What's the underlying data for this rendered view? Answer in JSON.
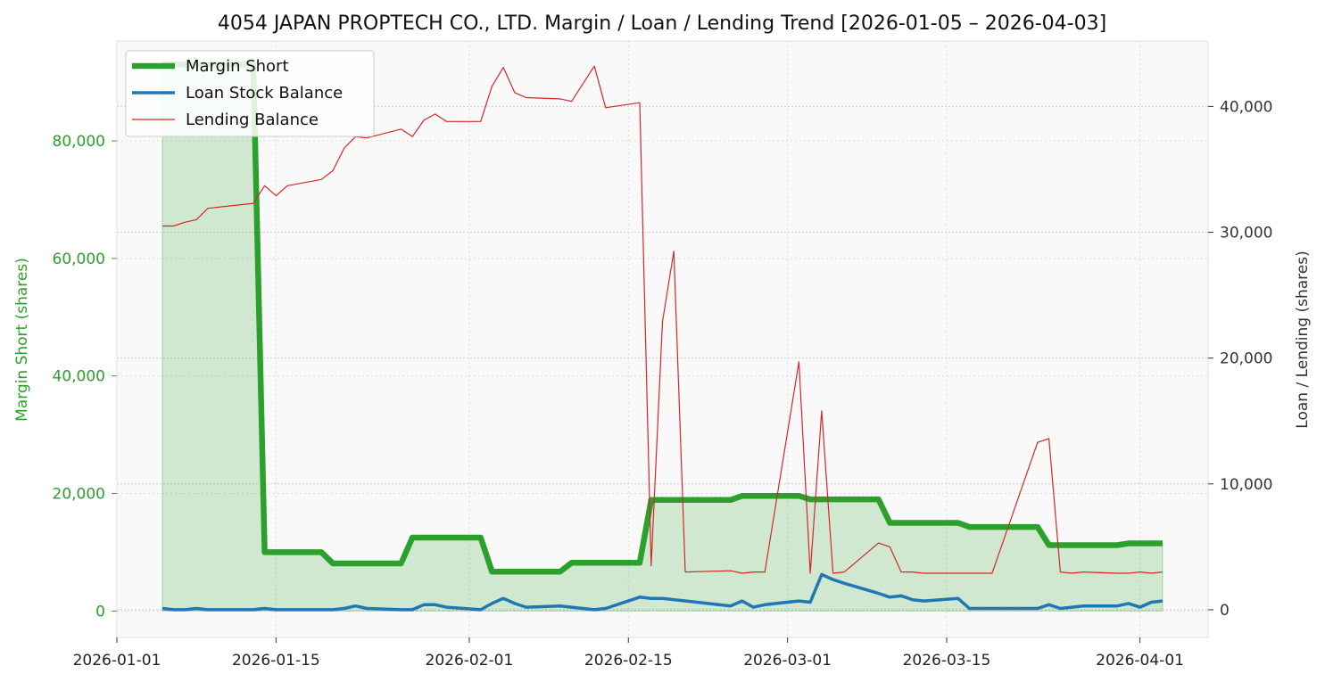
{
  "chart_data": {
    "type": "line",
    "title": "4054 JAPAN PROPTECH CO., LTD. Margin / Loan / Lending Trend [2026-01-05 – 2026-04-03]",
    "ylabel_left": "Margin Short (shares)",
    "ylabel_right": "Loan / Lending (shares)",
    "xlim": [
      "2026-01-01",
      "2026-04-07"
    ],
    "ylim_left": [
      -4500,
      97000
    ],
    "ylim_right": [
      -2200,
      45200
    ],
    "x_ticks": [
      "2026-01-01",
      "2026-01-15",
      "2026-02-01",
      "2026-02-15",
      "2026-03-01",
      "2026-03-15",
      "2026-04-01"
    ],
    "y_ticks_left": [
      0,
      20000,
      40000,
      60000,
      80000
    ],
    "y_ticks_left_labels": [
      "0",
      "20,000",
      "40,000",
      "60,000",
      "80,000"
    ],
    "y_ticks_right": [
      0,
      10000,
      20000,
      30000,
      40000
    ],
    "y_ticks_right_labels": [
      "0",
      "10,000",
      "20,000",
      "30,000",
      "40,000"
    ],
    "grid": true,
    "legend_position": "top-left",
    "series": [
      {
        "name": "Margin Short",
        "axis": "left",
        "color": "#2ca02c",
        "fill": true,
        "points": [
          [
            "2026-01-05",
            93000
          ],
          [
            "2026-01-06",
            93000
          ],
          [
            "2026-01-07",
            93000
          ],
          [
            "2026-01-08",
            93000
          ],
          [
            "2026-01-09",
            93000
          ],
          [
            "2026-01-13",
            93000
          ],
          [
            "2026-01-14",
            10000
          ],
          [
            "2026-01-15",
            10000
          ],
          [
            "2026-01-16",
            10000
          ],
          [
            "2026-01-19",
            10000
          ],
          [
            "2026-01-20",
            8100
          ],
          [
            "2026-01-21",
            8100
          ],
          [
            "2026-01-22",
            8100
          ],
          [
            "2026-01-23",
            8100
          ],
          [
            "2026-01-26",
            8100
          ],
          [
            "2026-01-27",
            12500
          ],
          [
            "2026-01-28",
            12500
          ],
          [
            "2026-01-29",
            12500
          ],
          [
            "2026-01-30",
            12500
          ],
          [
            "2026-02-02",
            12500
          ],
          [
            "2026-02-03",
            6700
          ],
          [
            "2026-02-04",
            6700
          ],
          [
            "2026-02-05",
            6700
          ],
          [
            "2026-02-06",
            6700
          ],
          [
            "2026-02-09",
            6700
          ],
          [
            "2026-02-10",
            8200
          ],
          [
            "2026-02-12",
            8200
          ],
          [
            "2026-02-13",
            8200
          ],
          [
            "2026-02-16",
            8200
          ],
          [
            "2026-02-17",
            18900
          ],
          [
            "2026-02-18",
            18900
          ],
          [
            "2026-02-19",
            18900
          ],
          [
            "2026-02-20",
            18900
          ],
          [
            "2026-02-24",
            18900
          ],
          [
            "2026-02-25",
            19600
          ],
          [
            "2026-02-26",
            19600
          ],
          [
            "2026-02-27",
            19600
          ],
          [
            "2026-03-02",
            19600
          ],
          [
            "2026-03-03",
            19000
          ],
          [
            "2026-03-04",
            19000
          ],
          [
            "2026-03-05",
            19000
          ],
          [
            "2026-03-06",
            19000
          ],
          [
            "2026-03-09",
            19000
          ],
          [
            "2026-03-10",
            15000
          ],
          [
            "2026-03-11",
            15000
          ],
          [
            "2026-03-12",
            15000
          ],
          [
            "2026-03-13",
            15000
          ],
          [
            "2026-03-16",
            15000
          ],
          [
            "2026-03-17",
            14300
          ],
          [
            "2026-03-18",
            14300
          ],
          [
            "2026-03-19",
            14300
          ],
          [
            "2026-03-23",
            14300
          ],
          [
            "2026-03-24",
            11200
          ],
          [
            "2026-03-25",
            11200
          ],
          [
            "2026-03-26",
            11200
          ],
          [
            "2026-03-27",
            11200
          ],
          [
            "2026-03-30",
            11200
          ],
          [
            "2026-03-31",
            11500
          ],
          [
            "2026-04-01",
            11500
          ],
          [
            "2026-04-02",
            11500
          ],
          [
            "2026-04-03",
            11500
          ]
        ]
      },
      {
        "name": "Loan Stock Balance",
        "axis": "right",
        "color": "#1f77b4",
        "fill": false,
        "points": [
          [
            "2026-01-05",
            100
          ],
          [
            "2026-01-06",
            0
          ],
          [
            "2026-01-07",
            0
          ],
          [
            "2026-01-08",
            100
          ],
          [
            "2026-01-09",
            0
          ],
          [
            "2026-01-13",
            0
          ],
          [
            "2026-01-14",
            100
          ],
          [
            "2026-01-15",
            0
          ],
          [
            "2026-01-16",
            0
          ],
          [
            "2026-01-19",
            0
          ],
          [
            "2026-01-20",
            0
          ],
          [
            "2026-01-21",
            100
          ],
          [
            "2026-01-22",
            300
          ],
          [
            "2026-01-23",
            100
          ],
          [
            "2026-01-26",
            0
          ],
          [
            "2026-01-27",
            0
          ],
          [
            "2026-01-28",
            400
          ],
          [
            "2026-01-29",
            400
          ],
          [
            "2026-01-30",
            200
          ],
          [
            "2026-02-02",
            0
          ],
          [
            "2026-02-03",
            500
          ],
          [
            "2026-02-04",
            900
          ],
          [
            "2026-02-05",
            500
          ],
          [
            "2026-02-06",
            200
          ],
          [
            "2026-02-09",
            300
          ],
          [
            "2026-02-10",
            200
          ],
          [
            "2026-02-12",
            0
          ],
          [
            "2026-02-13",
            100
          ],
          [
            "2026-02-16",
            1000
          ],
          [
            "2026-02-17",
            900
          ],
          [
            "2026-02-18",
            900
          ],
          [
            "2026-02-24",
            300
          ],
          [
            "2026-02-25",
            700
          ],
          [
            "2026-02-26",
            200
          ],
          [
            "2026-02-27",
            400
          ],
          [
            "2026-03-02",
            700
          ],
          [
            "2026-03-03",
            600
          ],
          [
            "2026-03-04",
            2800
          ],
          [
            "2026-03-05",
            2400
          ],
          [
            "2026-03-06",
            2100
          ],
          [
            "2026-03-09",
            1300
          ],
          [
            "2026-03-10",
            1000
          ],
          [
            "2026-03-11",
            1100
          ],
          [
            "2026-03-12",
            800
          ],
          [
            "2026-03-13",
            700
          ],
          [
            "2026-03-16",
            900
          ],
          [
            "2026-03-17",
            100
          ],
          [
            "2026-03-18",
            100
          ],
          [
            "2026-03-19",
            100
          ],
          [
            "2026-03-23",
            100
          ],
          [
            "2026-03-24",
            400
          ],
          [
            "2026-03-25",
            100
          ],
          [
            "2026-03-26",
            200
          ],
          [
            "2026-03-27",
            300
          ],
          [
            "2026-03-30",
            300
          ],
          [
            "2026-03-31",
            500
          ],
          [
            "2026-04-01",
            200
          ],
          [
            "2026-04-02",
            600
          ],
          [
            "2026-04-03",
            700
          ]
        ]
      },
      {
        "name": "Lending Balance",
        "axis": "right",
        "color": "#d62728",
        "fill": false,
        "points": [
          [
            "2026-01-05",
            30500
          ],
          [
            "2026-01-06",
            30500
          ],
          [
            "2026-01-07",
            30800
          ],
          [
            "2026-01-08",
            31000
          ],
          [
            "2026-01-09",
            31900
          ],
          [
            "2026-01-13",
            32300
          ],
          [
            "2026-01-14",
            33700
          ],
          [
            "2026-01-15",
            32900
          ],
          [
            "2026-01-16",
            33700
          ],
          [
            "2026-01-19",
            34200
          ],
          [
            "2026-01-20",
            34900
          ],
          [
            "2026-01-21",
            36700
          ],
          [
            "2026-01-22",
            37600
          ],
          [
            "2026-01-23",
            37500
          ],
          [
            "2026-01-26",
            38200
          ],
          [
            "2026-01-27",
            37600
          ],
          [
            "2026-01-28",
            38900
          ],
          [
            "2026-01-29",
            39400
          ],
          [
            "2026-01-30",
            38800
          ],
          [
            "2026-02-02",
            38800
          ],
          [
            "2026-02-03",
            41600
          ],
          [
            "2026-02-04",
            43100
          ],
          [
            "2026-02-05",
            41100
          ],
          [
            "2026-02-06",
            40700
          ],
          [
            "2026-02-09",
            40600
          ],
          [
            "2026-02-10",
            40400
          ],
          [
            "2026-02-12",
            43200
          ],
          [
            "2026-02-13",
            39900
          ],
          [
            "2026-02-16",
            40300
          ],
          [
            "2026-02-17",
            3500
          ],
          [
            "2026-02-18",
            22900
          ],
          [
            "2026-02-19",
            28500
          ],
          [
            "2026-02-20",
            3000
          ],
          [
            "2026-02-24",
            3100
          ],
          [
            "2026-02-25",
            2900
          ],
          [
            "2026-02-26",
            3000
          ],
          [
            "2026-02-27",
            3000
          ],
          [
            "2026-03-02",
            19700
          ],
          [
            "2026-03-03",
            2900
          ],
          [
            "2026-03-04",
            15800
          ],
          [
            "2026-03-05",
            2900
          ],
          [
            "2026-03-06",
            3000
          ],
          [
            "2026-03-09",
            5300
          ],
          [
            "2026-03-10",
            5000
          ],
          [
            "2026-03-11",
            3000
          ],
          [
            "2026-03-12",
            3000
          ],
          [
            "2026-03-13",
            2900
          ],
          [
            "2026-03-16",
            2900
          ],
          [
            "2026-03-17",
            2900
          ],
          [
            "2026-03-18",
            2900
          ],
          [
            "2026-03-19",
            2900
          ],
          [
            "2026-03-23",
            13300
          ],
          [
            "2026-03-24",
            13600
          ],
          [
            "2026-03-25",
            3000
          ],
          [
            "2026-03-26",
            2900
          ],
          [
            "2026-03-27",
            3000
          ],
          [
            "2026-03-30",
            2900
          ],
          [
            "2026-03-31",
            2900
          ],
          [
            "2026-04-01",
            3000
          ],
          [
            "2026-04-02",
            2900
          ],
          [
            "2026-04-03",
            3000
          ]
        ]
      }
    ]
  }
}
